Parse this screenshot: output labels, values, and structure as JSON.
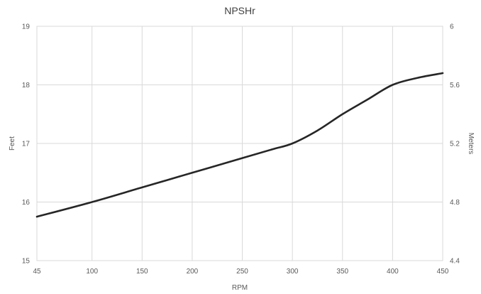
{
  "chart_data": {
    "type": "line",
    "title": "NPSHr",
    "xlabel": "RPM",
    "ylabel": "Feet",
    "y2label": "Meters",
    "xlim": [
      45,
      450
    ],
    "ylim": [
      15,
      19
    ],
    "y2lim": [
      4.4,
      6
    ],
    "x_ticks": [
      "45",
      "100",
      "150",
      "200",
      "250",
      "300",
      "350",
      "400",
      "450"
    ],
    "y_ticks": [
      "15",
      "16",
      "17",
      "18",
      "19"
    ],
    "y2_ticks": [
      "4.4",
      "4.8",
      "5.2",
      "5.6",
      "6"
    ],
    "grid": true,
    "legend": "none",
    "line_color": "#262626",
    "series": [
      {
        "x": [
          45,
          100,
          150,
          200,
          250,
          280,
          300,
          325,
          350,
          375,
          400,
          425,
          450
        ],
        "y": [
          15.75,
          16.0,
          16.25,
          16.5,
          16.75,
          16.9,
          17.0,
          17.22,
          17.5,
          17.75,
          18.0,
          18.12,
          18.2
        ]
      }
    ]
  }
}
